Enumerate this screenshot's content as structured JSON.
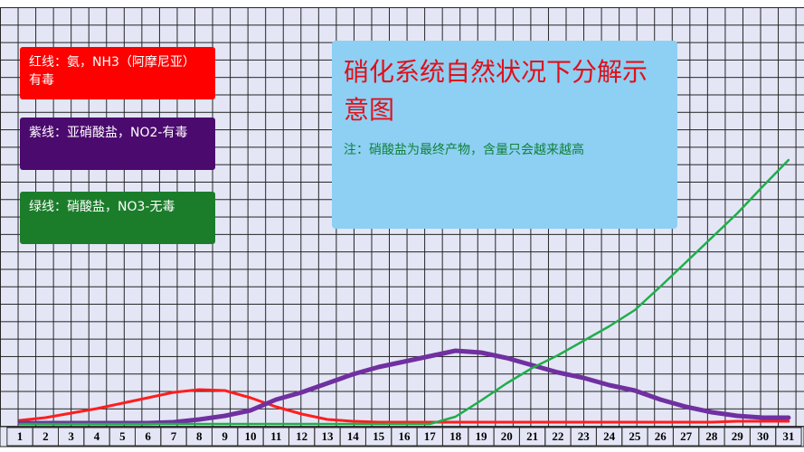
{
  "chart_data": {
    "type": "line",
    "title": "硝化系统自然状况下分解示意图",
    "note": "注：硝酸盐为最终产物，含量只会越来越高",
    "categories": [
      "1",
      "2",
      "3",
      "4",
      "5",
      "6",
      "7",
      "8",
      "9",
      "10",
      "11",
      "12",
      "13",
      "14",
      "15",
      "16",
      "17",
      "18",
      "19",
      "20",
      "21",
      "22",
      "23",
      "24",
      "25",
      "26",
      "27",
      "28",
      "29",
      "30",
      "31"
    ],
    "ylim": [
      0,
      22
    ],
    "series": [
      {
        "name": "红线：氨，NH3（阿摩尼亚）有毒",
        "color": "#ff1e1e",
        "box_color": "#ff0000",
        "values": [
          0.25,
          0.4,
          0.65,
          0.9,
          1.2,
          1.5,
          1.8,
          1.95,
          1.9,
          1.5,
          1.0,
          0.6,
          0.3,
          0.2,
          0.15,
          0.15,
          0.15,
          0.15,
          0.15,
          0.15,
          0.15,
          0.15,
          0.15,
          0.15,
          0.15,
          0.15,
          0.15,
          0.15,
          0.2,
          0.2,
          0.2
        ]
      },
      {
        "name": "紫线：亚硝酸盐，NO2-有毒",
        "color": "#7030a0",
        "box_color": "#4b0a6e",
        "values": [
          0.1,
          0.1,
          0.1,
          0.1,
          0.1,
          0.1,
          0.15,
          0.3,
          0.5,
          0.8,
          1.4,
          1.8,
          2.3,
          2.8,
          3.2,
          3.5,
          3.8,
          4.1,
          4.0,
          3.7,
          3.3,
          2.9,
          2.6,
          2.2,
          1.9,
          1.4,
          1.0,
          0.7,
          0.5,
          0.4,
          0.4
        ]
      },
      {
        "name": "绿线：硝酸盐，NO3-无毒",
        "color": "#1fae4a",
        "box_color": "#1b7d2a",
        "values": [
          0.05,
          0.05,
          0.05,
          0.05,
          0.05,
          0.05,
          0.05,
          0.05,
          0.05,
          0.05,
          0.05,
          0.05,
          0.05,
          0.05,
          0.05,
          0.05,
          0.05,
          0.45,
          1.35,
          2.3,
          3.15,
          3.85,
          4.65,
          5.45,
          6.35,
          7.65,
          9.0,
          10.35,
          11.7,
          13.2,
          14.65
        ]
      }
    ]
  }
}
